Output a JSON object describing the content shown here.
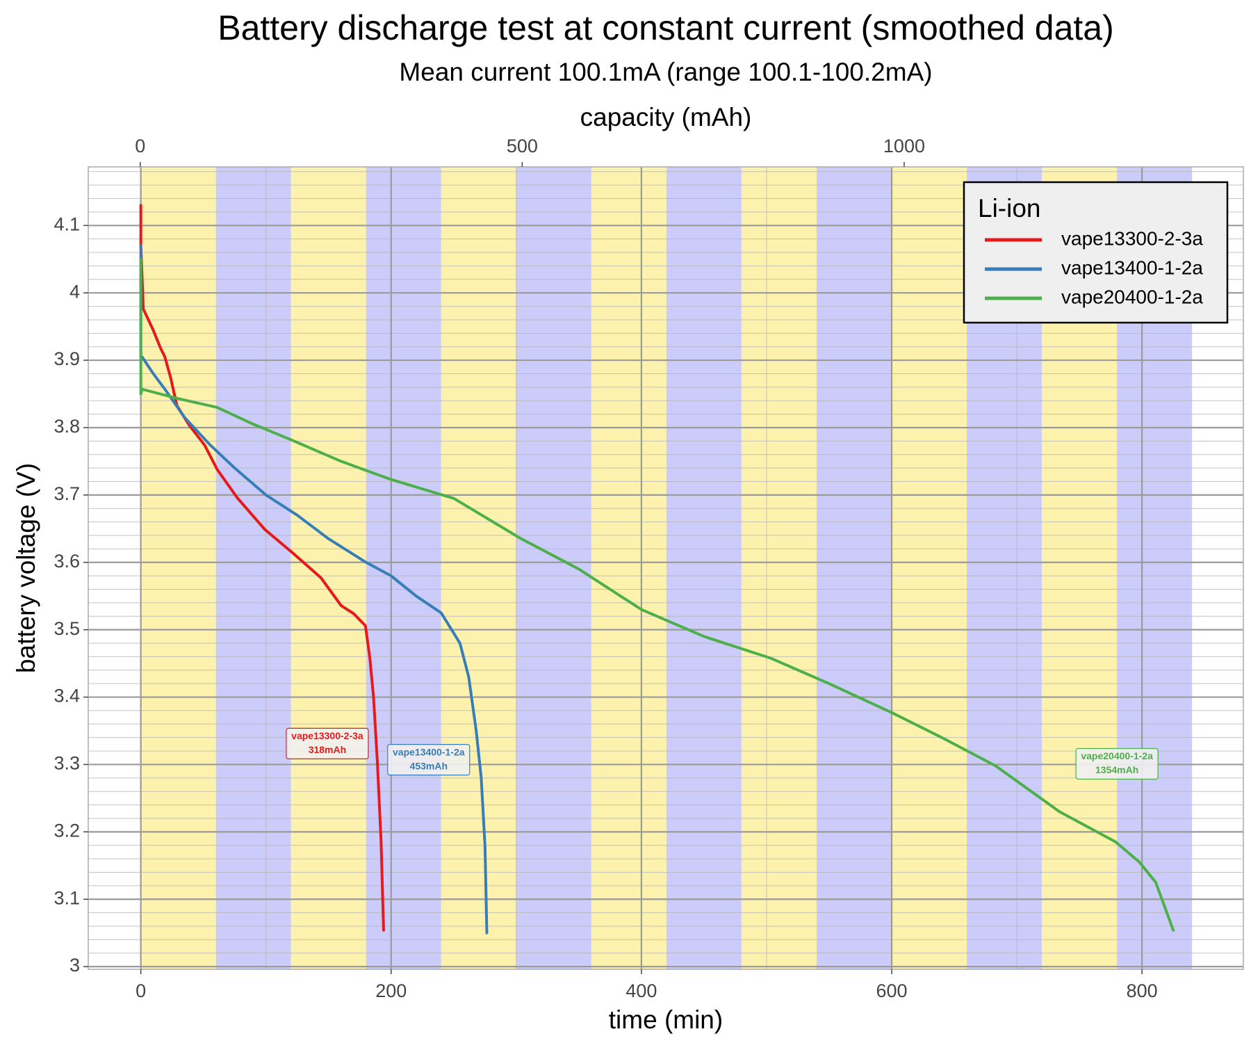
{
  "chart_data": {
    "type": "line",
    "title": "Battery discharge test at constant current (smoothed data)",
    "subtitle": "Mean current 100.1mA (range 100.1-100.2mA)",
    "x_label": "time (min)",
    "x2_label": "capacity (mAh)",
    "y_label": "battery voltage (V)",
    "xlim": [
      -42,
      881
    ],
    "xticks": [
      0,
      200,
      400,
      600,
      800
    ],
    "xminorticks": [
      100,
      300,
      500,
      700
    ],
    "x2lim": [
      -68,
      1444
    ],
    "x2ticks": [
      0,
      500,
      1000
    ],
    "ylim": [
      2.996,
      4.187
    ],
    "yticks": [
      3.0,
      3.1,
      3.2,
      3.3,
      3.4,
      3.5,
      3.6,
      3.7,
      3.8,
      3.9,
      4.0,
      4.1
    ],
    "yminorticks": [
      3.02,
      3.04,
      3.06,
      3.08,
      3.12,
      3.14,
      3.16,
      3.18,
      3.22,
      3.24,
      3.26,
      3.28,
      3.32,
      3.34,
      3.36,
      3.38,
      3.42,
      3.44,
      3.46,
      3.48,
      3.52,
      3.54,
      3.56,
      3.58,
      3.62,
      3.64,
      3.66,
      3.68,
      3.72,
      3.74,
      3.76,
      3.78,
      3.82,
      3.84,
      3.86,
      3.88,
      3.92,
      3.94,
      3.96,
      3.98,
      4.02,
      4.04,
      4.06,
      4.08,
      4.12,
      4.14,
      4.16,
      4.18
    ],
    "grid": true,
    "bands": {
      "edges": [
        0,
        60,
        120,
        180,
        240,
        300,
        360,
        420,
        480,
        540,
        600,
        660,
        720,
        780,
        840
      ],
      "colors": [
        "#fdf2ad",
        "#ccccfb"
      ]
    },
    "legend": {
      "title": "Li-ion",
      "position": "top-right"
    },
    "series": [
      {
        "name": "vape13300-2-3a",
        "color": "#e41a1c",
        "x": [
          0,
          0,
          2,
          9.6,
          16,
          19.2,
          23.7,
          28.8,
          38.5,
          51,
          61,
          77,
          99,
          122,
          144,
          160,
          170,
          179.5,
          183,
          186,
          189,
          192,
          194
        ],
        "values": [
          4.13,
          4.07,
          3.976,
          3.946,
          3.917,
          3.905,
          3.875,
          3.833,
          3.804,
          3.774,
          3.738,
          3.696,
          3.649,
          3.613,
          3.577,
          3.536,
          3.524,
          3.506,
          3.458,
          3.399,
          3.304,
          3.185,
          3.054
        ]
      },
      {
        "name": "vape13400-1-2a",
        "color": "#377eb8",
        "x": [
          0,
          0,
          1,
          10,
          20,
          35,
          55,
          75,
          100,
          125,
          150,
          180,
          200,
          220,
          240,
          245,
          255,
          262,
          268,
          272,
          275,
          276.5
        ],
        "values": [
          4.07,
          3.905,
          3.905,
          3.88,
          3.855,
          3.815,
          3.775,
          3.74,
          3.7,
          3.67,
          3.635,
          3.6,
          3.58,
          3.55,
          3.525,
          3.51,
          3.48,
          3.43,
          3.35,
          3.28,
          3.18,
          3.05
        ]
      },
      {
        "name": "vape20400-1-2a",
        "color": "#4daf4a",
        "x": [
          0,
          0,
          1,
          30,
          61,
          90,
          120,
          160,
          200,
          250,
          304,
          350,
          400,
          450,
          503,
          550,
          600,
          640,
          683,
          734,
          779,
          798,
          811,
          825
        ],
        "values": [
          4.05,
          3.85,
          3.857,
          3.843,
          3.83,
          3.805,
          3.782,
          3.75,
          3.723,
          3.695,
          3.635,
          3.59,
          3.53,
          3.49,
          3.458,
          3.42,
          3.377,
          3.34,
          3.298,
          3.23,
          3.185,
          3.155,
          3.125,
          3.054
        ]
      }
    ],
    "annotations": [
      {
        "series": 0,
        "lines": [
          "vape13300-2-3a",
          "318mAh"
        ],
        "x": 149,
        "y": 3.331
      },
      {
        "series": 1,
        "lines": [
          "vape13400-1-2a",
          "453mAh"
        ],
        "x": 230,
        "y": 3.307
      },
      {
        "series": 2,
        "lines": [
          "vape20400-1-2a",
          "1354mAh"
        ],
        "x": 780,
        "y": 3.301
      }
    ]
  }
}
